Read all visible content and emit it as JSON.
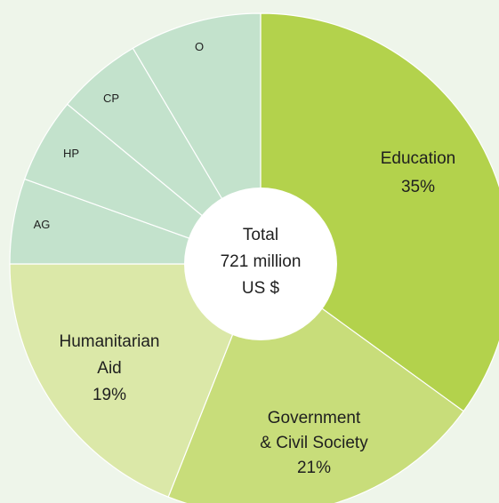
{
  "chart_data": {
    "type": "pie",
    "donut": true,
    "center_label": [
      "Total",
      "721 million",
      "US $"
    ],
    "slices": [
      {
        "label": "Education",
        "value": 35,
        "value_label": "35%",
        "color": "#b3d24c"
      },
      {
        "label": "Government & Civil Society",
        "value": 21,
        "value_label": "21%",
        "color": "#c8dd7a"
      },
      {
        "label": "Humanitarian Aid",
        "value": 19,
        "value_label": "19%",
        "color": "#dbe8a8"
      },
      {
        "label": "AG",
        "value": 5.5,
        "value_label": "",
        "color": "#c3e2cc"
      },
      {
        "label": "HP",
        "value": 5.5,
        "value_label": "",
        "color": "#c3e2cc"
      },
      {
        "label": "CP",
        "value": 5.5,
        "value_label": "",
        "color": "#c3e2cc"
      },
      {
        "label": "O",
        "value": 8.5,
        "value_label": "",
        "color": "#c3e2cc"
      }
    ],
    "display_lines": [
      [
        "Education",
        "35%"
      ],
      [
        "Government",
        "& Civil Society",
        "21%"
      ],
      [
        "Humanitarian",
        "Aid",
        "19%"
      ],
      [
        "AG"
      ],
      [
        "HP"
      ],
      [
        "CP"
      ],
      [
        "O"
      ]
    ]
  }
}
